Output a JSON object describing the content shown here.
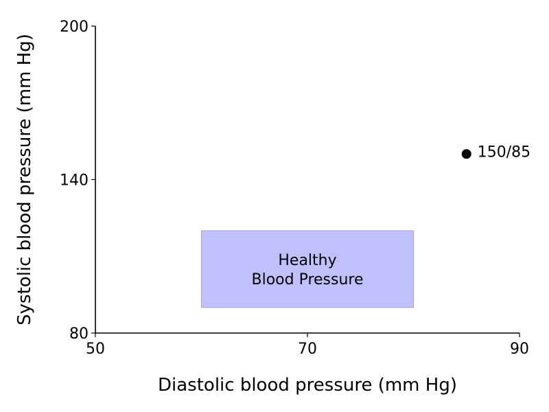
{
  "chart_data": {
    "type": "scatter",
    "xlabel": "Diastolic blood pressure (mm Hg)",
    "ylabel": "Systolic blood pressure (mm Hg)",
    "xlim": [
      50,
      90
    ],
    "ylim": [
      80,
      200
    ],
    "x_ticks": [
      50,
      70,
      90
    ],
    "y_ticks": [
      80,
      140,
      200
    ],
    "x_tick_labels": [
      "50",
      "70",
      "90"
    ],
    "y_tick_labels": [
      "80",
      "140",
      "200"
    ],
    "grid": false,
    "points": [
      {
        "x": 85,
        "y": 150,
        "label": "150/85"
      }
    ],
    "regions": [
      {
        "x_range": [
          60,
          80
        ],
        "y_range": [
          90,
          120
        ],
        "label_lines": [
          "Healthy",
          "Blood Pressure"
        ],
        "fill": "#c0c0ff",
        "stroke": "#a8a8d8"
      }
    ],
    "colors": {
      "point": "#000000",
      "axis": "#000000"
    }
  }
}
